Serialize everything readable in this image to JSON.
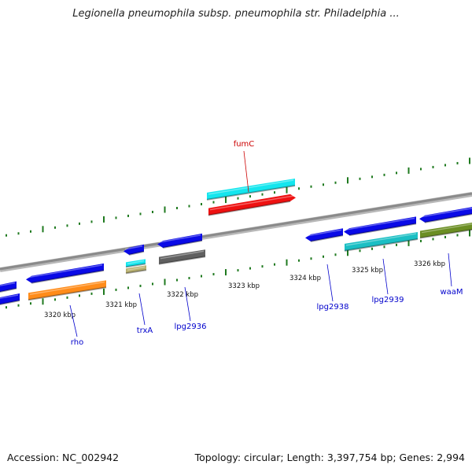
{
  "title": "Legionella pneumophila subsp. pneumophila str. Philadelphia ...",
  "footer": {
    "accession": "Accession: NC_002942",
    "topology": "Topology: circular; Length: 3,397,754 bp; Genes: 2,994"
  },
  "colors": {
    "backbone": "#8a8a8a",
    "tick": "#1f7a1f",
    "gene_label": "#0000cc",
    "highlight_label": "#cc0000",
    "blue": "#0a0ae6",
    "cyan": "#14e6ee",
    "red": "#ee1111",
    "orange": "#ff8c1a",
    "teal": "#1bbfc4",
    "olive": "#6b8e23",
    "gray": "#606060",
    "khaki": "#b8b070"
  },
  "scale_labels": [
    "3320 kbp",
    "3321 kbp",
    "3322 kbp",
    "3323 kbp",
    "3324 kbp",
    "3325 kbp",
    "3326 kbp"
  ],
  "genes": [
    {
      "id": "g1",
      "label": "",
      "color": "blue"
    },
    {
      "id": "g2",
      "label": "",
      "color": "blue"
    },
    {
      "id": "rho",
      "label": "rho",
      "color": "orange"
    },
    {
      "id": "g4",
      "label": "",
      "color": "blue"
    },
    {
      "id": "g5",
      "label": "",
      "color": "blue"
    },
    {
      "id": "trxA",
      "label": "trxA",
      "color": "cyan"
    },
    {
      "id": "g7",
      "label": "",
      "color": "khaki"
    },
    {
      "id": "g8",
      "label": "",
      "color": "blue"
    },
    {
      "id": "lpg2936",
      "label": "lpg2936",
      "color": "gray"
    },
    {
      "id": "fumC_b",
      "label": "",
      "color": "cyan"
    },
    {
      "id": "fumC",
      "label": "fumC",
      "color": "red"
    },
    {
      "id": "lpg2938",
      "label": "lpg2938",
      "color": "blue"
    },
    {
      "id": "g13",
      "label": "",
      "color": "blue"
    },
    {
      "id": "lpg2939",
      "label": "lpg2939",
      "color": "teal"
    },
    {
      "id": "g15",
      "label": "",
      "color": "blue"
    },
    {
      "id": "waaM",
      "label": "waaM",
      "color": "olive"
    }
  ]
}
